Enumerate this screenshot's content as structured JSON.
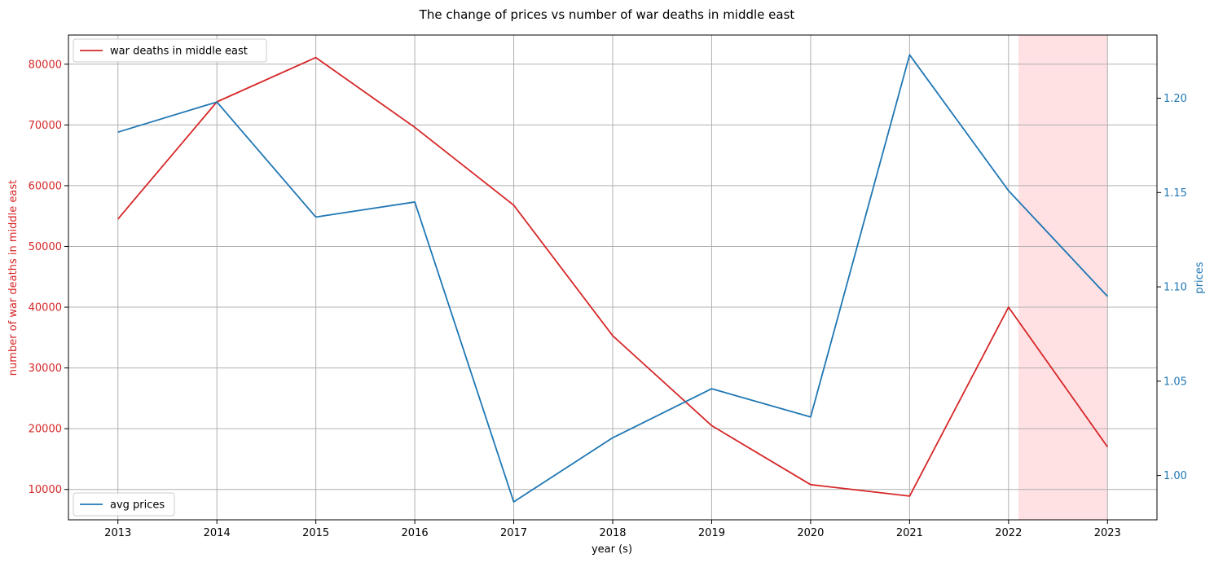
{
  "chart_data": {
    "type": "line",
    "title": "The change of prices vs number of war deaths in middle east",
    "xlabel": "year (s)",
    "ylabel_left": "number of war deaths in middle east",
    "ylabel_right": "prices",
    "x": [
      2013,
      2014,
      2015,
      2016,
      2017,
      2018,
      2019,
      2020,
      2021,
      2022,
      2023
    ],
    "xlim": [
      2012.5,
      2023.5
    ],
    "ylim_left": [
      5000,
      84800
    ],
    "ylim_right": [
      0.9765,
      1.2335
    ],
    "left_ticks": [
      10000,
      20000,
      30000,
      40000,
      50000,
      60000,
      70000,
      80000
    ],
    "right_ticks": [
      "1.00",
      "1.05",
      "1.10",
      "1.15",
      "1.20"
    ],
    "grid": true,
    "shaded_region": {
      "x_start": 2022.1,
      "x_end": 2023,
      "color": "#ffe0e3"
    },
    "series": [
      {
        "name": "war deaths in middle east",
        "axis": "left",
        "color": "#d62728",
        "legend_position": "top-left",
        "values": [
          54500,
          73800,
          81100,
          69600,
          56800,
          35300,
          20500,
          10800,
          8900,
          40000,
          17000
        ]
      },
      {
        "name": "avg prices",
        "axis": "right",
        "color": "#1f77b4",
        "legend_position": "bottom-left",
        "values": [
          1.182,
          1.198,
          1.137,
          1.145,
          0.986,
          1.02,
          1.046,
          1.031,
          1.223,
          1.151,
          1.095
        ]
      }
    ]
  }
}
